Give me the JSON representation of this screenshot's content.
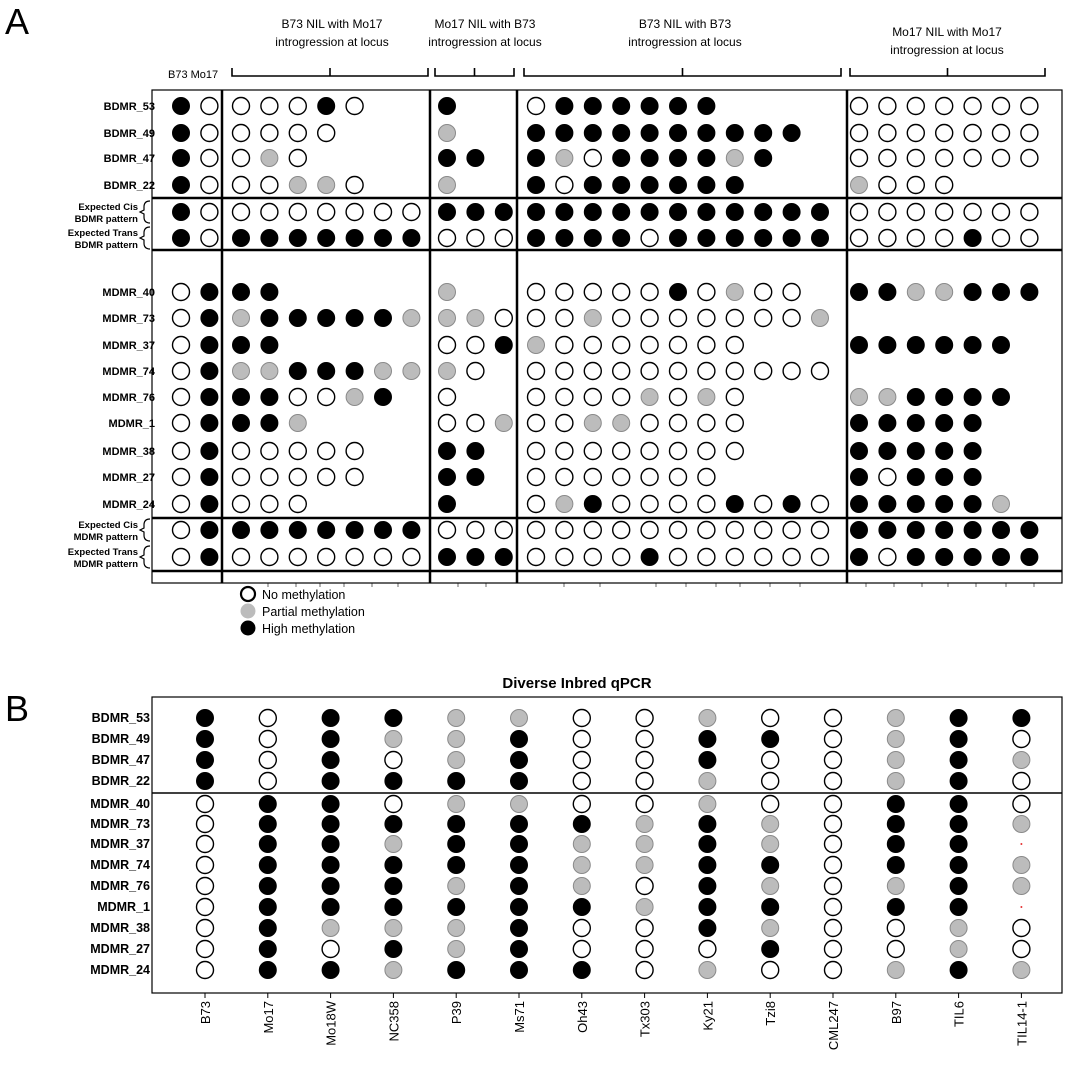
{
  "panel_a": {
    "letter": "A",
    "lineage_label": "B73 Mo17",
    "group_headers": [
      [
        "B73 NIL with Mo17",
        "introgression at locus"
      ],
      [
        "Mo17 NIL with B73",
        "introgression at locus"
      ],
      [
        "B73 NIL with B73",
        "introgression at locus"
      ],
      [
        "Mo17 NIL with Mo17",
        "introgression at locus"
      ]
    ],
    "legend": {
      "none": "No methylation",
      "partial": "Partial methylation",
      "high": "High methylation"
    },
    "rows": [
      {
        "label": "BDMR_53",
        "cols": [
          [
            2,
            0
          ],
          [
            0,
            0,
            0,
            2,
            0
          ],
          [
            2
          ],
          [
            0,
            2,
            2,
            2,
            2,
            2,
            2
          ],
          [
            0,
            0,
            0,
            0,
            0,
            0,
            0
          ]
        ]
      },
      {
        "label": "BDMR_49",
        "cols": [
          [
            2,
            0
          ],
          [
            0,
            0,
            0,
            0
          ],
          [
            1
          ],
          [
            2,
            2,
            2,
            2,
            2,
            2,
            2,
            2,
            2,
            2
          ],
          [
            0,
            0,
            0,
            0,
            0,
            0,
            0
          ]
        ]
      },
      {
        "label": "BDMR_47",
        "cols": [
          [
            2,
            0
          ],
          [
            0,
            1,
            0
          ],
          [
            2,
            2
          ],
          [
            2,
            1,
            0,
            2,
            2,
            2,
            2,
            1,
            2
          ],
          [
            0,
            0,
            0,
            0,
            0,
            0,
            0
          ]
        ]
      },
      {
        "label": "BDMR_22",
        "cols": [
          [
            2,
            0
          ],
          [
            0,
            0,
            1,
            1,
            0
          ],
          [
            1
          ],
          [
            2,
            0,
            2,
            2,
            2,
            2,
            2,
            2
          ],
          [
            1,
            0,
            0,
            0
          ]
        ]
      },
      {
        "label": [
          "Expected Cis",
          "BDMR pattern"
        ],
        "expected": true,
        "cols": [
          [
            2,
            0
          ],
          [
            0,
            0,
            0,
            0,
            0,
            0,
            0
          ],
          [
            2,
            2,
            2
          ],
          [
            2,
            2,
            2,
            2,
            2,
            2,
            2,
            2,
            2,
            2,
            2
          ],
          [
            0,
            0,
            0,
            0,
            0,
            0,
            0
          ]
        ]
      },
      {
        "label": [
          "Expected Trans",
          "BDMR pattern"
        ],
        "expected": true,
        "cols": [
          [
            2,
            0
          ],
          [
            2,
            2,
            2,
            2,
            2,
            2,
            2
          ],
          [
            0,
            0,
            0
          ],
          [
            2,
            2,
            2,
            2,
            0,
            2,
            2,
            2,
            2,
            2,
            2
          ],
          [
            0,
            0,
            0,
            0,
            2,
            0,
            0
          ]
        ]
      },
      {
        "label": "MDMR_40",
        "cols": [
          [
            0,
            2
          ],
          [
            2,
            2
          ],
          [
            1
          ],
          [
            0,
            0,
            0,
            0,
            0,
            2,
            0,
            1,
            0,
            0
          ],
          [
            2,
            2,
            1,
            1,
            2,
            2,
            2
          ]
        ]
      },
      {
        "label": "MDMR_73",
        "cols": [
          [
            0,
            2
          ],
          [
            1,
            2,
            2,
            2,
            2,
            2,
            1
          ],
          [
            1,
            1,
            0
          ],
          [
            0,
            0,
            1,
            0,
            0,
            0,
            0,
            0,
            0,
            0,
            1
          ],
          []
        ]
      },
      {
        "label": "MDMR_37",
        "cols": [
          [
            0,
            2
          ],
          [
            2,
            2
          ],
          [
            0,
            0,
            2
          ],
          [
            1,
            0,
            0,
            0,
            0,
            0,
            0,
            0
          ],
          [
            2,
            2,
            2,
            2,
            2,
            2
          ]
        ]
      },
      {
        "label": "MDMR_74",
        "cols": [
          [
            0,
            2
          ],
          [
            1,
            1,
            2,
            2,
            2,
            1,
            1
          ],
          [
            1,
            0
          ],
          [
            0,
            0,
            0,
            0,
            0,
            0,
            0,
            0,
            0,
            0,
            0
          ],
          []
        ]
      },
      {
        "label": "MDMR_76",
        "cols": [
          [
            0,
            2
          ],
          [
            2,
            2,
            0,
            0,
            1,
            2
          ],
          [
            0
          ],
          [
            0,
            0,
            0,
            0,
            1,
            0,
            1,
            0
          ],
          [
            1,
            1,
            2,
            2,
            2,
            2
          ]
        ]
      },
      {
        "label": "MDMR_1",
        "cols": [
          [
            0,
            2
          ],
          [
            2,
            2,
            1
          ],
          [
            0,
            0,
            1
          ],
          [
            0,
            0,
            1,
            1,
            0,
            0,
            0,
            0
          ],
          [
            2,
            2,
            2,
            2,
            2
          ]
        ]
      },
      {
        "label": "MDMR_38",
        "cols": [
          [
            0,
            2
          ],
          [
            0,
            0,
            0,
            0,
            0
          ],
          [
            2,
            2
          ],
          [
            0,
            0,
            0,
            0,
            0,
            0,
            0,
            0
          ],
          [
            2,
            2,
            2,
            2,
            2
          ]
        ]
      },
      {
        "label": "MDMR_27",
        "cols": [
          [
            0,
            2
          ],
          [
            0,
            0,
            0,
            0,
            0
          ],
          [
            2,
            2
          ],
          [
            0,
            0,
            0,
            0,
            0,
            0,
            0
          ],
          [
            2,
            0,
            2,
            2,
            2
          ]
        ]
      },
      {
        "label": "MDMR_24",
        "cols": [
          [
            0,
            2
          ],
          [
            0,
            0,
            0
          ],
          [
            2
          ],
          [
            0,
            1,
            2,
            0,
            0,
            0,
            0,
            2,
            0,
            2,
            0
          ],
          [
            2,
            2,
            2,
            2,
            2,
            1
          ]
        ]
      },
      {
        "label": [
          "Expected Cis",
          "MDMR pattern"
        ],
        "expected": true,
        "cols": [
          [
            0,
            2
          ],
          [
            2,
            2,
            2,
            2,
            2,
            2,
            2
          ],
          [
            0,
            0,
            0
          ],
          [
            0,
            0,
            0,
            0,
            0,
            0,
            0,
            0,
            0,
            0,
            0
          ],
          [
            2,
            2,
            2,
            2,
            2,
            2,
            2
          ]
        ]
      },
      {
        "label": [
          "Expected Trans",
          "MDMR pattern"
        ],
        "expected": true,
        "cols": [
          [
            0,
            2
          ],
          [
            0,
            0,
            0,
            0,
            0,
            0,
            0
          ],
          [
            2,
            2,
            2
          ],
          [
            0,
            0,
            0,
            0,
            2,
            0,
            0,
            0,
            0,
            0,
            0
          ],
          [
            2,
            0,
            2,
            2,
            2,
            2,
            2
          ]
        ]
      }
    ]
  },
  "panel_b": {
    "letter": "B",
    "title": "Diverse Inbred qPCR",
    "columns": [
      "B73",
      "Mo17",
      "Mo18W",
      "NC358",
      "P39",
      "Ms71",
      "Oh43",
      "Tx303",
      "Ky21",
      "Tzi8",
      "CML247",
      "B97",
      "TIL6",
      "TIL14-1"
    ],
    "rows": [
      {
        "label": "BDMR_53",
        "values": [
          2,
          0,
          2,
          2,
          1,
          1,
          0,
          0,
          1,
          0,
          0,
          1,
          2,
          2
        ]
      },
      {
        "label": "BDMR_49",
        "values": [
          2,
          0,
          2,
          1,
          1,
          2,
          0,
          0,
          2,
          2,
          0,
          1,
          2,
          0
        ]
      },
      {
        "label": "BDMR_47",
        "values": [
          2,
          0,
          2,
          0,
          1,
          2,
          0,
          0,
          2,
          0,
          0,
          1,
          2,
          1
        ]
      },
      {
        "label": "BDMR_22",
        "values": [
          2,
          0,
          2,
          2,
          2,
          2,
          0,
          0,
          1,
          0,
          0,
          1,
          2,
          0
        ]
      },
      {
        "label": "MDMR_40",
        "values": [
          0,
          2,
          2,
          0,
          1,
          1,
          0,
          0,
          1,
          0,
          0,
          2,
          2,
          0
        ]
      },
      {
        "label": "MDMR_73",
        "values": [
          0,
          2,
          2,
          2,
          2,
          2,
          2,
          1,
          2,
          1,
          0,
          2,
          2,
          1
        ]
      },
      {
        "label": "MDMR_37",
        "values": [
          0,
          2,
          2,
          1,
          2,
          2,
          1,
          1,
          2,
          1,
          0,
          2,
          2,
          null
        ]
      },
      {
        "label": "MDMR_74",
        "values": [
          0,
          2,
          2,
          2,
          2,
          2,
          1,
          1,
          2,
          2,
          0,
          2,
          2,
          1
        ]
      },
      {
        "label": "MDMR_76",
        "values": [
          0,
          2,
          2,
          2,
          1,
          2,
          1,
          0,
          2,
          1,
          0,
          1,
          2,
          1
        ]
      },
      {
        "label": "MDMR_1",
        "values": [
          0,
          2,
          2,
          2,
          2,
          2,
          2,
          1,
          2,
          2,
          0,
          2,
          2,
          null
        ]
      },
      {
        "label": "MDMR_38",
        "values": [
          0,
          2,
          1,
          1,
          1,
          2,
          0,
          0,
          2,
          1,
          0,
          0,
          1,
          0
        ]
      },
      {
        "label": "MDMR_27",
        "values": [
          0,
          2,
          0,
          2,
          1,
          2,
          0,
          0,
          0,
          2,
          0,
          0,
          1,
          0
        ]
      },
      {
        "label": "MDMR_24",
        "values": [
          0,
          2,
          2,
          1,
          2,
          2,
          2,
          0,
          1,
          0,
          0,
          1,
          2,
          1
        ]
      }
    ]
  },
  "colors": {
    "high": "#000000",
    "partial": "#bcbcbc",
    "none": "#ffffff",
    "missing": "#e53030"
  }
}
